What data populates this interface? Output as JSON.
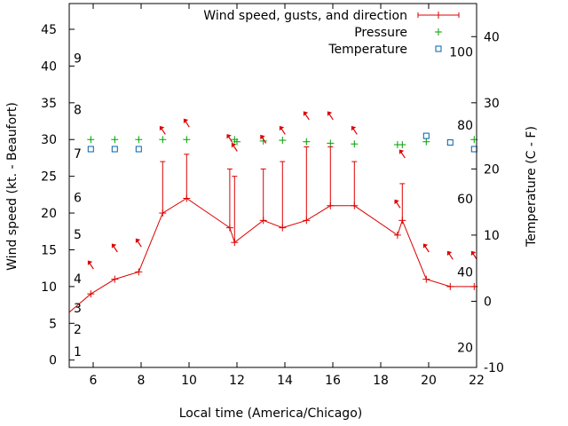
{
  "chart_data": {
    "type": "line",
    "xlabel": "Local time (America/Chicago)",
    "ylabel": "Wind speed (kt. - Beaufort)",
    "y2label": "Temperature (C - F)",
    "xlim": [
      5,
      22
    ],
    "ylim": [
      -1,
      48.5
    ],
    "y2lim": [
      -10,
      45
    ],
    "x_ticks": [
      6,
      8,
      10,
      12,
      14,
      16,
      18,
      20,
      22
    ],
    "y_ticks": [
      0,
      5,
      10,
      15,
      20,
      25,
      30,
      35,
      40,
      45
    ],
    "y2_ticks": [
      -10,
      0,
      10,
      20,
      30,
      40
    ],
    "beaufort_labels": [
      {
        "label": "1",
        "y": 1.2
      },
      {
        "label": "2",
        "y": 4.2
      },
      {
        "label": "3",
        "y": 7.1
      },
      {
        "label": "4",
        "y": 11.1
      },
      {
        "label": "5",
        "y": 17.1
      },
      {
        "label": "6",
        "y": 22.1
      },
      {
        "label": "7",
        "y": 28.1
      },
      {
        "label": "8",
        "y": 34.1
      },
      {
        "label": "9",
        "y": 41.1
      }
    ],
    "fahrenheit_labels": [
      {
        "label": "20",
        "y": -7
      },
      {
        "label": "40",
        "y": 4.4
      },
      {
        "label": "60",
        "y": 15.5
      },
      {
        "label": "80",
        "y": 26.6
      },
      {
        "label": "100",
        "y": 37.7
      }
    ],
    "legend": {
      "position": "top-right"
    },
    "series": [
      {
        "name": "Wind speed, gusts, and direction",
        "color": "#dd0000",
        "x": [
          5,
          5.9,
          6.9,
          7.9,
          8.9,
          9.9,
          11.7,
          11.9,
          13.1,
          13.9,
          14.9,
          15.9,
          16.9,
          18.7,
          18.9,
          19.9,
          20.9,
          21.9,
          22
        ],
        "y": [
          6.5,
          9,
          11,
          12,
          20,
          22,
          18,
          16,
          19,
          18,
          19,
          21,
          21,
          17,
          19,
          11,
          10,
          10,
          10
        ],
        "gusts": [
          null,
          null,
          null,
          null,
          27,
          28,
          26,
          25,
          26,
          27,
          29,
          29,
          27,
          null,
          24,
          null,
          null,
          null,
          null
        ],
        "direction_arrows": [
          {
            "x": 5.9,
            "y": 13
          },
          {
            "x": 6.9,
            "y": 15.3
          },
          {
            "x": 7.9,
            "y": 16
          },
          {
            "x": 8.9,
            "y": 31.3
          },
          {
            "x": 9.9,
            "y": 32.3
          },
          {
            "x": 11.7,
            "y": 30.2
          },
          {
            "x": 11.9,
            "y": 29
          },
          {
            "x": 13.1,
            "y": 30.1
          },
          {
            "x": 13.9,
            "y": 31.3
          },
          {
            "x": 14.9,
            "y": 33.3
          },
          {
            "x": 15.9,
            "y": 33.3
          },
          {
            "x": 16.9,
            "y": 31.3
          },
          {
            "x": 18.7,
            "y": 21.3
          },
          {
            "x": 18.9,
            "y": 28.1
          },
          {
            "x": 19.9,
            "y": 15.3
          },
          {
            "x": 20.9,
            "y": 14.3
          },
          {
            "x": 21.9,
            "y": 14.3
          }
        ]
      },
      {
        "name": "Pressure",
        "color": "#00a000",
        "x": [
          5.9,
          6.9,
          7.9,
          8.9,
          9.9,
          11.9,
          12.0,
          13.1,
          13.9,
          14.9,
          15.9,
          16.9,
          18.7,
          18.9,
          19.9,
          21.9
        ],
        "y": [
          30,
          30,
          30,
          30,
          30,
          30,
          29.7,
          29.8,
          29.9,
          29.7,
          29.5,
          29.4,
          29.3,
          29.3,
          29.7,
          30
        ]
      },
      {
        "name": "Temperature",
        "color": "#0060ad",
        "x": [
          5.9,
          6.9,
          7.9,
          19.9,
          20.9,
          21.9
        ],
        "y": [
          23,
          23,
          23,
          25,
          24,
          23
        ]
      }
    ]
  }
}
